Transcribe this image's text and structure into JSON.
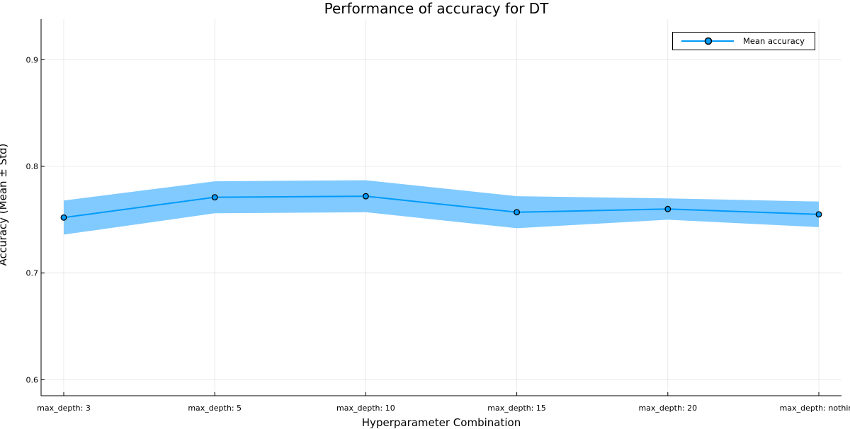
{
  "chart_data": {
    "type": "line",
    "title": "Performance of accuracy for DT",
    "xlabel": "Hyperparameter Combination",
    "ylabel": "Accuracy (Mean ± Std)",
    "categories": [
      "max_depth: 3",
      "max_depth: 5",
      "max_depth: 10",
      "max_depth: 15",
      "max_depth: 20",
      "max_depth: nothing"
    ],
    "series": [
      {
        "name": "Mean accuracy",
        "values": [
          0.752,
          0.771,
          0.772,
          0.757,
          0.76,
          0.755
        ],
        "std": [
          0.016,
          0.015,
          0.015,
          0.015,
          0.01,
          0.012
        ],
        "color": "#009af9",
        "band_color": "#80caff"
      }
    ],
    "ylim": [
      0.585,
      0.938
    ],
    "yticks": [
      0.6,
      0.7,
      0.8,
      0.9
    ],
    "grid": true,
    "legend_position": "top-right"
  }
}
